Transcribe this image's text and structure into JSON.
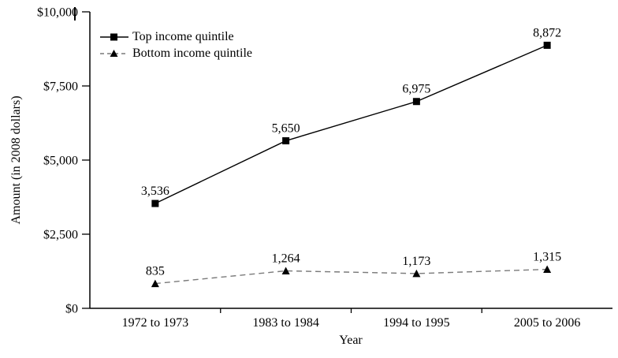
{
  "chart_data": {
    "type": "line",
    "title": "",
    "xlabel": "Year",
    "ylabel": "Amount (in 2008 dollars)",
    "categories": [
      "1972 to 1973",
      "1983 to 1984",
      "1994 to 1995",
      "2005 to 2006"
    ],
    "ylim": [
      0,
      10000
    ],
    "grid": false,
    "legend_position": "top-left-inside",
    "y_ticks": [
      {
        "value": 0,
        "label": "$0"
      },
      {
        "value": 2500,
        "label": "$2,500"
      },
      {
        "value": 5000,
        "label": "$5,000"
      },
      {
        "value": 7500,
        "label": "$7,500"
      },
      {
        "value": 10000,
        "label": "$10,000"
      }
    ],
    "series": [
      {
        "name": "Top income quintile",
        "marker": "square",
        "line_style": "solid",
        "line_color": "#000000",
        "marker_color": "#000000",
        "values": [
          3536,
          5650,
          6975,
          8872
        ],
        "labels": [
          "3,536",
          "5,650",
          "6,975",
          "8,872"
        ]
      },
      {
        "name": "Bottom income quintile",
        "marker": "triangle",
        "line_style": "dashed",
        "line_color": "#7a7a7a",
        "marker_color": "#000000",
        "values": [
          835,
          1264,
          1173,
          1315
        ],
        "labels": [
          "835",
          "1,264",
          "1,173",
          "1,315"
        ]
      }
    ]
  }
}
